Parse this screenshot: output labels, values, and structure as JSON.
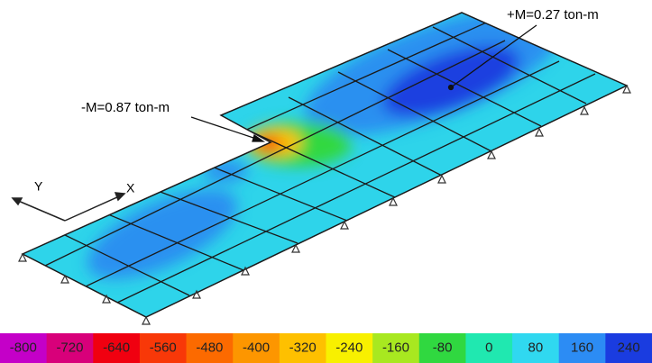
{
  "annotations": {
    "negative_moment": "-M=0.87 ton-m",
    "positive_moment": "+M=0.27 ton-m"
  },
  "axes": {
    "y": "Y",
    "x": "X"
  },
  "colorbar": {
    "labels": [
      -800,
      -720,
      -640,
      -560,
      -480,
      -400,
      -320,
      -240,
      -160,
      -80,
      0,
      80,
      160,
      240
    ],
    "colors": [
      "#c400c8",
      "#d8007a",
      "#f00010",
      "#f83808",
      "#fc6a00",
      "#fd9600",
      "#fec000",
      "#f8f000",
      "#a8e820",
      "#30d840",
      "#20e8b0",
      "#30d8f0",
      "#2c8cf4",
      "#1a3ce0"
    ]
  }
}
